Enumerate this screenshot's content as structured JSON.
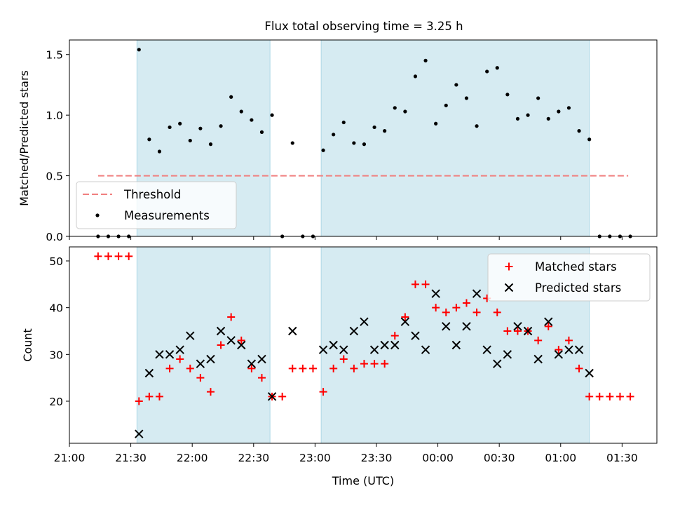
{
  "title": "Flux total observing time = 3.25 h",
  "chart_data": [
    {
      "type": "scatter",
      "ylabel": "Matched/Predicted stars",
      "ylim": [
        0,
        1.62
      ],
      "yticks": [
        0.0,
        0.5,
        1.0,
        1.5
      ],
      "ytick_labels": [
        "0.0",
        "0.5",
        "1.0",
        "1.5"
      ],
      "xlim": [
        "21:00",
        "01:47"
      ],
      "threshold": {
        "name": "Threshold",
        "value": 0.5,
        "x_start": "21:14",
        "x_end": "01:33",
        "color": "#f08080",
        "style": "dashed"
      },
      "shaded_intervals": [
        [
          "21:33",
          "22:38"
        ],
        [
          "23:03",
          "01:14"
        ]
      ],
      "shade_color": "#add8e6",
      "legend": {
        "position": "lower-left",
        "entries": [
          "Threshold",
          "Measurements"
        ]
      },
      "series": [
        {
          "name": "Measurements",
          "color": "#000000",
          "x": [
            "21:14",
            "21:19",
            "21:24",
            "21:29",
            "21:34",
            "21:39",
            "21:44",
            "21:49",
            "21:54",
            "21:59",
            "22:04",
            "22:09",
            "22:14",
            "22:19",
            "22:24",
            "22:29",
            "22:34",
            "22:39",
            "22:44",
            "22:49",
            "22:54",
            "22:59",
            "23:04",
            "23:09",
            "23:14",
            "23:19",
            "23:24",
            "23:29",
            "23:34",
            "23:39",
            "23:44",
            "23:49",
            "23:54",
            "23:59",
            "00:04",
            "00:09",
            "00:14",
            "00:19",
            "00:24",
            "00:29",
            "00:34",
            "00:39",
            "00:44",
            "00:49",
            "00:54",
            "00:59",
            "01:04",
            "01:09",
            "01:14",
            "01:19",
            "01:24",
            "01:29",
            "01:34"
          ],
          "values": [
            0,
            0,
            0,
            0,
            1.54,
            0.8,
            0.7,
            0.9,
            0.93,
            0.79,
            0.89,
            0.76,
            0.91,
            1.15,
            1.03,
            0.96,
            0.86,
            1.0,
            0,
            0.77,
            0,
            0,
            0.71,
            0.84,
            0.94,
            0.77,
            0.76,
            0.9,
            0.87,
            1.06,
            1.03,
            1.32,
            1.45,
            0.93,
            1.08,
            1.25,
            1.14,
            0.91,
            1.36,
            1.39,
            1.17,
            0.97,
            1.0,
            1.14,
            0.97,
            1.03,
            1.06,
            0.87,
            0.8,
            0,
            0,
            0,
            0
          ]
        }
      ]
    },
    {
      "type": "scatter",
      "xlabel": "Time (UTC)",
      "ylabel": "Count",
      "ylim": [
        11,
        53
      ],
      "yticks": [
        20,
        30,
        40,
        50
      ],
      "ytick_labels": [
        "20",
        "30",
        "40",
        "50"
      ],
      "xlim": [
        "21:00",
        "01:47"
      ],
      "xticks": [
        "21:00",
        "21:30",
        "22:00",
        "22:30",
        "23:00",
        "23:30",
        "00:00",
        "00:30",
        "01:00",
        "01:30"
      ],
      "xtick_labels": [
        "21:00",
        "21:30",
        "22:00",
        "22:30",
        "23:00",
        "23:30",
        "00:00",
        "00:30",
        "01:00",
        "01:30"
      ],
      "shaded_intervals": [
        [
          "21:33",
          "22:38"
        ],
        [
          "23:03",
          "01:14"
        ]
      ],
      "legend": {
        "position": "upper-right",
        "entries": [
          "Matched stars",
          "Predicted stars"
        ]
      },
      "x": [
        "21:14",
        "21:19",
        "21:24",
        "21:29",
        "21:34",
        "21:39",
        "21:44",
        "21:49",
        "21:54",
        "21:59",
        "22:04",
        "22:09",
        "22:14",
        "22:19",
        "22:24",
        "22:29",
        "22:34",
        "22:39",
        "22:44",
        "22:49",
        "22:54",
        "22:59",
        "23:04",
        "23:09",
        "23:14",
        "23:19",
        "23:24",
        "23:29",
        "23:34",
        "23:39",
        "23:44",
        "23:49",
        "23:54",
        "23:59",
        "00:04",
        "00:09",
        "00:14",
        "00:19",
        "00:24",
        "00:29",
        "00:34",
        "00:39",
        "00:44",
        "00:49",
        "00:54",
        "00:59",
        "01:04",
        "01:09",
        "01:14",
        "01:19",
        "01:24",
        "01:29",
        "01:34"
      ],
      "series": [
        {
          "name": "Matched stars",
          "color": "#ff0000",
          "marker": "plus",
          "values": [
            51,
            51,
            51,
            51,
            20,
            21,
            21,
            27,
            29,
            27,
            25,
            22,
            32,
            38,
            33,
            27,
            25,
            21,
            21,
            27,
            27,
            27,
            22,
            27,
            29,
            27,
            28,
            28,
            28,
            34,
            38,
            45,
            45,
            40,
            39,
            40,
            41,
            39,
            42,
            39,
            35,
            35,
            35,
            33,
            36,
            31,
            33,
            27,
            21,
            21,
            21,
            21,
            21
          ]
        },
        {
          "name": "Predicted stars",
          "color": "#000000",
          "marker": "x",
          "values": [
            null,
            null,
            null,
            null,
            13,
            26,
            30,
            30,
            31,
            34,
            28,
            29,
            35,
            33,
            32,
            28,
            29,
            21,
            null,
            35,
            null,
            null,
            31,
            32,
            31,
            35,
            37,
            31,
            32,
            32,
            37,
            34,
            31,
            43,
            36,
            32,
            36,
            43,
            31,
            28,
            30,
            36,
            35,
            29,
            37,
            30,
            31,
            31,
            26,
            null,
            null,
            null,
            null
          ]
        }
      ]
    }
  ]
}
